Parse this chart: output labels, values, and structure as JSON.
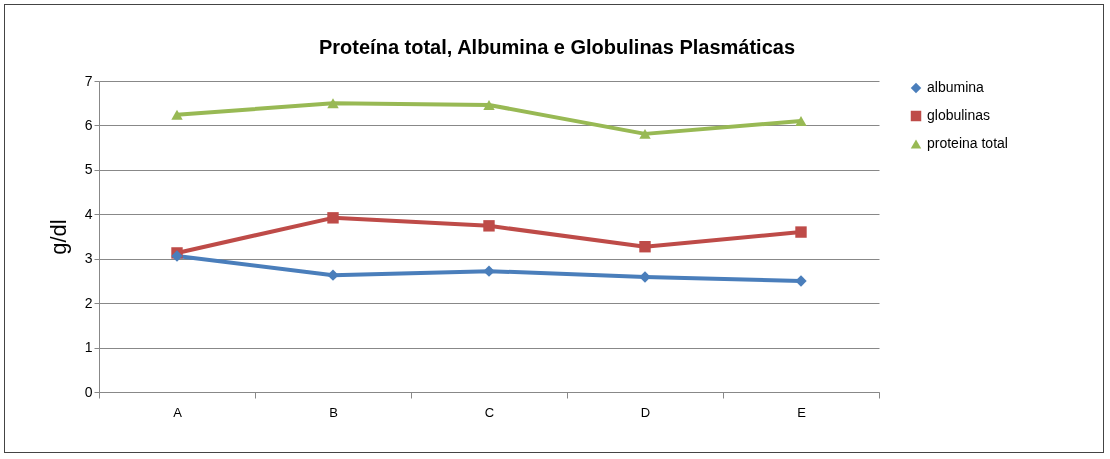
{
  "chart_data": {
    "type": "line",
    "title": "Proteína total, Albumina e Globulinas Plasmáticas",
    "ylabel": "g/dl",
    "categories": [
      "A",
      "B",
      "C",
      "D",
      "E"
    ],
    "series": [
      {
        "name": "albumina",
        "color": "#4a7ebb",
        "marker": "diamond",
        "values": [
          3.06,
          2.63,
          2.72,
          2.59,
          2.5
        ]
      },
      {
        "name": "globulinas",
        "color": "#be4b48",
        "marker": "square",
        "values": [
          3.13,
          3.92,
          3.74,
          3.27,
          3.6
        ]
      },
      {
        "name": "proteina total",
        "color": "#98b954",
        "marker": "triangle",
        "values": [
          6.24,
          6.5,
          6.46,
          5.81,
          6.1
        ]
      }
    ],
    "ylim": [
      0,
      7
    ],
    "yticks": [
      0,
      1,
      2,
      3,
      4,
      5,
      6,
      7
    ],
    "grid": "y",
    "legend": "right"
  }
}
